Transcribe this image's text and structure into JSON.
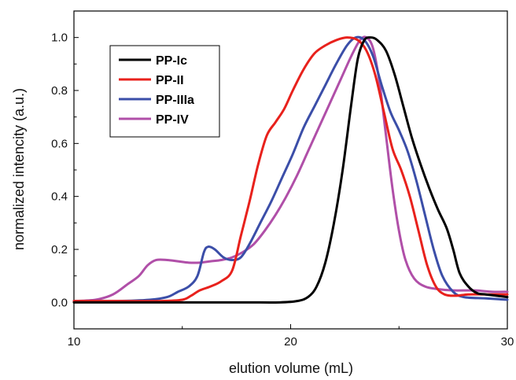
{
  "chart_data": {
    "type": "line",
    "xlabel": "elution volume (mL)",
    "ylabel": "normalized intencity (a.u.)",
    "xlim": [
      10,
      30
    ],
    "ylim": [
      -0.1,
      1.1
    ],
    "x_ticks": [
      10,
      20,
      30
    ],
    "x_tick_labels": [
      "10",
      "20",
      "30"
    ],
    "y_ticks": [
      0.0,
      0.2,
      0.4,
      0.6,
      0.8,
      1.0
    ],
    "y_tick_labels": [
      "0.0",
      "0.2",
      "0.4",
      "0.6",
      "0.8",
      "1.0"
    ],
    "grid": false,
    "legend_position": "top-left",
    "series": [
      {
        "name": "PP-Ic",
        "color": "#000000",
        "points": [
          [
            10,
            0.0
          ],
          [
            12,
            0.0
          ],
          [
            14,
            0.0
          ],
          [
            16,
            0.0
          ],
          [
            18,
            0.0
          ],
          [
            19.5,
            0.0
          ],
          [
            20.3,
            0.005
          ],
          [
            20.8,
            0.02
          ],
          [
            21.2,
            0.06
          ],
          [
            21.6,
            0.15
          ],
          [
            22.0,
            0.3
          ],
          [
            22.4,
            0.5
          ],
          [
            22.8,
            0.75
          ],
          [
            23.1,
            0.92
          ],
          [
            23.4,
            0.99
          ],
          [
            23.7,
            1.0
          ],
          [
            24.0,
            0.99
          ],
          [
            24.4,
            0.95
          ],
          [
            24.8,
            0.86
          ],
          [
            25.2,
            0.74
          ],
          [
            25.6,
            0.62
          ],
          [
            26.0,
            0.52
          ],
          [
            26.4,
            0.43
          ],
          [
            26.8,
            0.35
          ],
          [
            27.2,
            0.28
          ],
          [
            27.5,
            0.2
          ],
          [
            27.8,
            0.11
          ],
          [
            28.2,
            0.06
          ],
          [
            28.6,
            0.035
          ],
          [
            29.0,
            0.03
          ],
          [
            29.5,
            0.025
          ],
          [
            30,
            0.02
          ]
        ]
      },
      {
        "name": "PP-II",
        "color": "#e8211c",
        "points": [
          [
            10,
            0.005
          ],
          [
            12,
            0.005
          ],
          [
            14,
            0.005
          ],
          [
            15.0,
            0.01
          ],
          [
            15.4,
            0.025
          ],
          [
            15.8,
            0.045
          ],
          [
            16.3,
            0.06
          ],
          [
            16.8,
            0.08
          ],
          [
            17.3,
            0.12
          ],
          [
            17.7,
            0.25
          ],
          [
            18.1,
            0.38
          ],
          [
            18.5,
            0.52
          ],
          [
            18.9,
            0.63
          ],
          [
            19.3,
            0.68
          ],
          [
            19.7,
            0.73
          ],
          [
            20.1,
            0.8
          ],
          [
            20.6,
            0.88
          ],
          [
            21.1,
            0.94
          ],
          [
            21.6,
            0.97
          ],
          [
            22.1,
            0.99
          ],
          [
            22.6,
            1.0
          ],
          [
            23.1,
            0.99
          ],
          [
            23.5,
            0.95
          ],
          [
            23.9,
            0.86
          ],
          [
            24.3,
            0.72
          ],
          [
            24.7,
            0.58
          ],
          [
            25.1,
            0.5
          ],
          [
            25.5,
            0.4
          ],
          [
            25.9,
            0.27
          ],
          [
            26.3,
            0.14
          ],
          [
            26.7,
            0.06
          ],
          [
            27.1,
            0.03
          ],
          [
            27.6,
            0.025
          ],
          [
            28.2,
            0.03
          ],
          [
            29.0,
            0.03
          ],
          [
            30,
            0.03
          ]
        ]
      },
      {
        "name": "PP-IIIa",
        "color": "#3b4ea8",
        "points": [
          [
            10,
            0.005
          ],
          [
            12,
            0.005
          ],
          [
            13.5,
            0.01
          ],
          [
            14.3,
            0.02
          ],
          [
            14.8,
            0.04
          ],
          [
            15.3,
            0.06
          ],
          [
            15.7,
            0.1
          ],
          [
            16.0,
            0.19
          ],
          [
            16.2,
            0.21
          ],
          [
            16.5,
            0.2
          ],
          [
            16.9,
            0.17
          ],
          [
            17.3,
            0.16
          ],
          [
            17.7,
            0.17
          ],
          [
            18.1,
            0.22
          ],
          [
            18.6,
            0.3
          ],
          [
            19.1,
            0.38
          ],
          [
            19.6,
            0.47
          ],
          [
            20.1,
            0.56
          ],
          [
            20.6,
            0.66
          ],
          [
            21.1,
            0.74
          ],
          [
            21.6,
            0.82
          ],
          [
            22.1,
            0.9
          ],
          [
            22.6,
            0.97
          ],
          [
            23.0,
            1.0
          ],
          [
            23.4,
            0.99
          ],
          [
            23.8,
            0.93
          ],
          [
            24.2,
            0.82
          ],
          [
            24.6,
            0.72
          ],
          [
            25.0,
            0.65
          ],
          [
            25.4,
            0.57
          ],
          [
            25.8,
            0.46
          ],
          [
            26.2,
            0.33
          ],
          [
            26.6,
            0.2
          ],
          [
            27.0,
            0.1
          ],
          [
            27.5,
            0.04
          ],
          [
            28.0,
            0.02
          ],
          [
            29.0,
            0.015
          ],
          [
            30,
            0.01
          ]
        ]
      },
      {
        "name": "PP-IV",
        "color": "#b04fa8",
        "points": [
          [
            10,
            0.005
          ],
          [
            11.0,
            0.01
          ],
          [
            11.8,
            0.03
          ],
          [
            12.5,
            0.07
          ],
          [
            13.0,
            0.1
          ],
          [
            13.4,
            0.14
          ],
          [
            13.8,
            0.16
          ],
          [
            14.3,
            0.16
          ],
          [
            14.8,
            0.155
          ],
          [
            15.3,
            0.15
          ],
          [
            15.8,
            0.15
          ],
          [
            16.3,
            0.155
          ],
          [
            16.8,
            0.16
          ],
          [
            17.3,
            0.17
          ],
          [
            17.8,
            0.19
          ],
          [
            18.3,
            0.22
          ],
          [
            18.8,
            0.27
          ],
          [
            19.3,
            0.33
          ],
          [
            19.8,
            0.4
          ],
          [
            20.3,
            0.48
          ],
          [
            20.8,
            0.57
          ],
          [
            21.3,
            0.66
          ],
          [
            21.8,
            0.75
          ],
          [
            22.3,
            0.84
          ],
          [
            22.8,
            0.93
          ],
          [
            23.2,
            0.99
          ],
          [
            23.5,
            1.0
          ],
          [
            23.8,
            0.96
          ],
          [
            24.1,
            0.83
          ],
          [
            24.4,
            0.63
          ],
          [
            24.7,
            0.43
          ],
          [
            25.0,
            0.27
          ],
          [
            25.3,
            0.16
          ],
          [
            25.7,
            0.09
          ],
          [
            26.2,
            0.06
          ],
          [
            26.8,
            0.05
          ],
          [
            27.5,
            0.045
          ],
          [
            28.5,
            0.045
          ],
          [
            29.3,
            0.04
          ],
          [
            30,
            0.04
          ]
        ]
      }
    ]
  }
}
